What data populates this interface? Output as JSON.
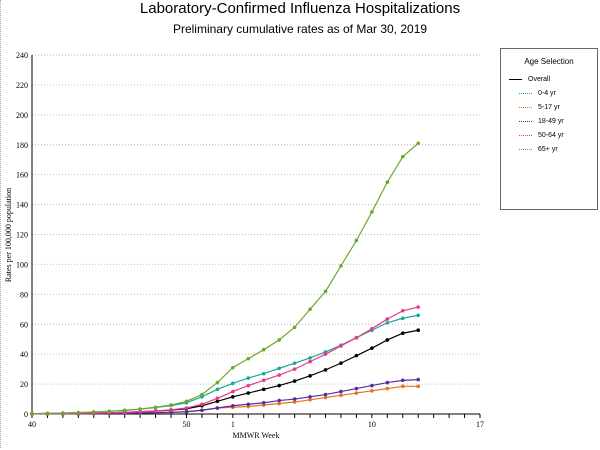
{
  "chart_data": {
    "type": "line",
    "title": "Laboratory-Confirmed Influenza Hospitalizations",
    "subtitle": "Preliminary cumulative rates as of Mar 30, 2019",
    "xlabel": "MMWR Week",
    "ylabel": "Rates per 100,000 population",
    "ylim": [
      0,
      240
    ],
    "yticks": [
      0,
      20,
      40,
      60,
      80,
      100,
      120,
      140,
      160,
      180,
      200,
      220,
      240
    ],
    "x_ticks": [
      "40",
      "41",
      "42",
      "43",
      "44",
      "45",
      "46",
      "47",
      "48",
      "49",
      "50",
      "51",
      "52",
      "1",
      "2",
      "3",
      "4",
      "5",
      "6",
      "7",
      "8",
      "9",
      "10",
      "11",
      "12",
      "13",
      "14",
      "15",
      "16",
      "17"
    ],
    "x_tick_labels": {
      "40": "40",
      "50": "50",
      "1": "1",
      "10": "10",
      "17": "17"
    },
    "x": [
      "40",
      "41",
      "42",
      "43",
      "44",
      "45",
      "46",
      "47",
      "48",
      "49",
      "50",
      "51",
      "52",
      "1",
      "2",
      "3",
      "4",
      "5",
      "6",
      "7",
      "8",
      "9",
      "10",
      "11",
      "12",
      "13"
    ],
    "grid": true,
    "legend": {
      "title": "Age Selection",
      "placement": "right"
    },
    "series": [
      {
        "name": "Overall",
        "color": "#000000",
        "values": [
          0.1,
          0.2,
          0.3,
          0.4,
          0.6,
          0.8,
          1.1,
          1.5,
          2.0,
          2.6,
          3.5,
          5.5,
          8.5,
          11.5,
          14,
          16.5,
          19,
          22,
          25.5,
          29.5,
          34,
          39,
          44,
          49.5,
          54,
          56
        ]
      },
      {
        "name": "0-4 yr",
        "color": "#1aa898",
        "values": [
          0.2,
          0.4,
          0.6,
          0.9,
          1.3,
          1.8,
          2.4,
          3.2,
          4.3,
          5.6,
          7.5,
          11.5,
          16.5,
          20.5,
          24,
          27,
          30.5,
          34,
          37.5,
          41.5,
          46,
          51,
          56,
          61,
          64,
          66
        ]
      },
      {
        "name": "5-17 yr",
        "color": "#e8731a",
        "values": [
          0.05,
          0.1,
          0.1,
          0.2,
          0.3,
          0.4,
          0.5,
          0.7,
          0.9,
          1.1,
          1.5,
          2.5,
          4,
          4.5,
          5,
          6,
          7,
          8,
          9.5,
          11,
          12.5,
          14,
          15.5,
          17,
          18.5,
          18.5
        ]
      },
      {
        "name": "18-49 yr",
        "color": "#5a2ca0",
        "values": [
          0.05,
          0.1,
          0.1,
          0.2,
          0.3,
          0.4,
          0.5,
          0.7,
          0.9,
          1.1,
          1.5,
          2.5,
          4,
          5.5,
          6.5,
          7.5,
          9,
          10,
          11.5,
          13,
          15,
          17,
          19,
          21,
          22.5,
          23
        ]
      },
      {
        "name": "50-64 yr",
        "color": "#e8388c",
        "values": [
          0.1,
          0.2,
          0.3,
          0.4,
          0.6,
          0.8,
          1.1,
          1.5,
          2.0,
          2.8,
          4,
          6.5,
          10.5,
          15,
          19,
          22.5,
          26,
          30,
          35,
          40,
          45.5,
          51,
          57,
          63.5,
          69,
          71.5
        ]
      },
      {
        "name": "65+ yr",
        "color": "#6aaa2a",
        "values": [
          0.2,
          0.4,
          0.6,
          0.9,
          1.3,
          1.8,
          2.5,
          3.3,
          4.5,
          6,
          8.5,
          13,
          21,
          31,
          37,
          43,
          49.5,
          58,
          70,
          82,
          99,
          116,
          135,
          155,
          172,
          181
        ]
      }
    ]
  }
}
